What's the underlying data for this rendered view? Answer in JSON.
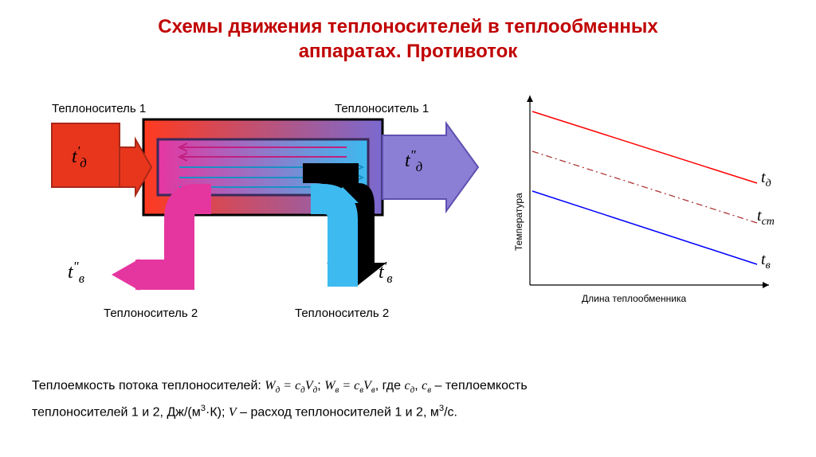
{
  "title": {
    "line1": "Схемы движения теплоносителей в теплообменных",
    "line2": "аппаратах. Противоток",
    "color": "#c00000",
    "fontsize": 24
  },
  "diagram": {
    "labels": {
      "top_left": "Теплоноситель 1",
      "top_right": "Теплоноситель 1",
      "bottom_left": "Теплоноситель 2",
      "bottom_right": "Теплоноситель 2"
    },
    "temps": {
      "inlet_hot": {
        "t": "t",
        "prime": "'",
        "sub": "д"
      },
      "outlet_hot": {
        "t": "t",
        "prime": "\"",
        "sub": "д"
      },
      "inlet_cold": {
        "t": "t",
        "prime": "'",
        "sub": "в"
      },
      "outlet_cold": {
        "t": "t",
        "prime": "\"",
        "sub": "в"
      }
    },
    "colors": {
      "hot_in": "#e8361d",
      "hot_in_stroke": "#a82818",
      "hot_gradient_start": "#ff3a1f",
      "hot_gradient_end": "#7a6ad0",
      "cold_in": "#3dbaf0",
      "cold_in_stroke": "#1a8fc5",
      "cold_out": "#e536a0",
      "cold_out_stroke": "#c02080",
      "outlet_purple": "#8a7fd4",
      "outlet_purple_stroke": "#6050b0",
      "inner_border": "#3a2a5a",
      "outer_border": "#000000"
    }
  },
  "chart": {
    "axis_color": "#000000",
    "y_label": "Температура",
    "x_label": "Длина теплообменника",
    "lines": {
      "hot": {
        "color": "#ff0000",
        "x1": 58,
        "y1": 40,
        "x2": 340,
        "y2": 130,
        "label": {
          "t": "t",
          "sub": "д"
        },
        "width": 1.5
      },
      "wall": {
        "color": "#aa2a2a",
        "x1": 58,
        "y1": 90,
        "x2": 340,
        "y2": 180,
        "label": {
          "t": "t",
          "sub": "ст"
        },
        "dash": "8 4 2 4",
        "width": 1.2
      },
      "cold": {
        "color": "#0000ff",
        "x1": 58,
        "y1": 140,
        "x2": 340,
        "y2": 232,
        "label": {
          "t": "t",
          "sub": "в"
        },
        "width": 1.5
      }
    },
    "axes": {
      "x_axis_y": 258,
      "y_axis_x": 55,
      "xlim": [
        55,
        355
      ],
      "ylim": [
        258,
        20
      ]
    }
  },
  "footer": {
    "pre": "Теплоемкость потока теплоносителей: ",
    "eq1": {
      "W": "W",
      "Wsub": "д",
      "eq": " = ",
      "c": "c",
      "csub": "д",
      "V": "V",
      "Vsub": "д"
    },
    "sep": "; ",
    "eq2": {
      "W": "W",
      "Wsub": "в",
      "eq": " = ",
      "c": "c",
      "csub": "в",
      "V": "V",
      "Vsub": "в"
    },
    "post1": ", где ",
    "c1": "c",
    "c1sub": "д",
    "comma": ", ",
    "c2": "c",
    "c2sub": "в",
    "post2": " – теплоемкость",
    "line2a": "теплоносителей 1 и 2, Дж/(м",
    "line2sup": "3",
    "line2b": "·К); ",
    "V": "V",
    "line2c": " – расход теплоносителей 1 и 2, м",
    "line2sup2": "3",
    "line2d": "/с."
  }
}
